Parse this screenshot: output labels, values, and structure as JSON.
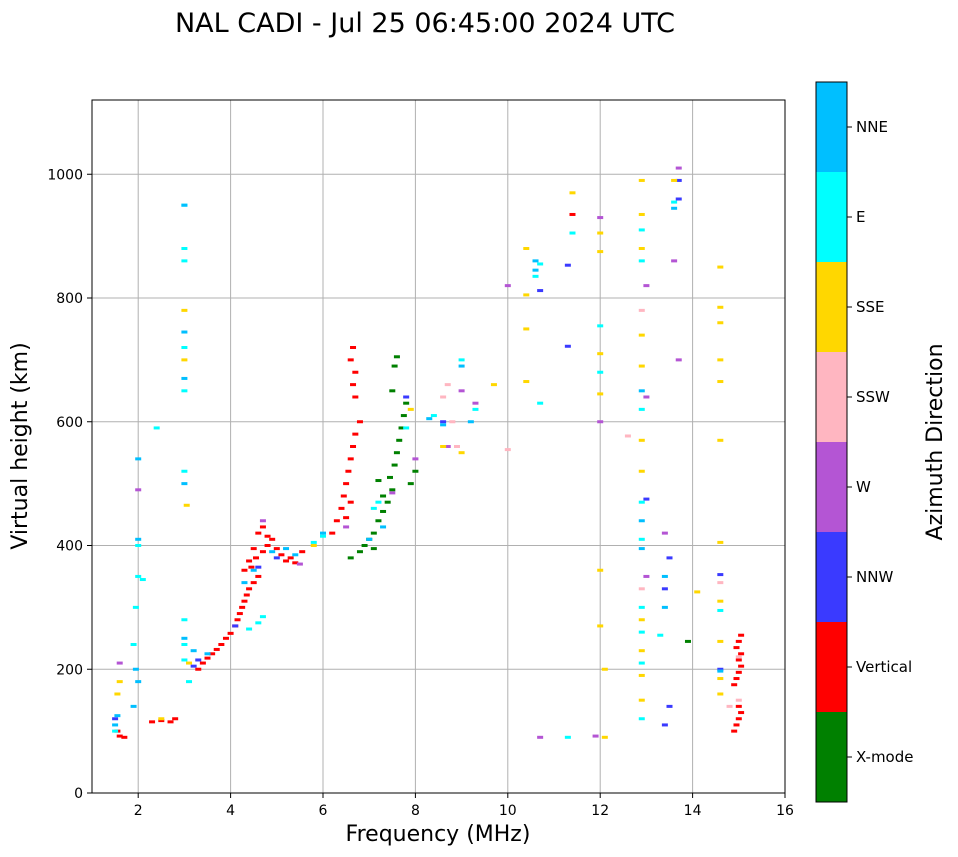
{
  "colors": {
    "X-mode": "#008000",
    "Vertical": "#ff0000",
    "NNW": "#3a3aff",
    "W": "#b455d4",
    "SSW": "#ffb6c1",
    "SSE": "#ffd700",
    "E": "#00ffff",
    "NNE": "#00bfff"
  },
  "chart_data": {
    "type": "scatter",
    "title": "NAL CADI - Jul 25 06:45:00 2024 UTC",
    "xlabel": "Frequency (MHz)",
    "ylabel": "Virtual height (km)",
    "xlim": [
      1,
      16
    ],
    "ylim": [
      0,
      1120
    ],
    "xticks": [
      2,
      4,
      6,
      8,
      10,
      12,
      14,
      16
    ],
    "yticks": [
      0,
      200,
      400,
      600,
      800,
      1000
    ],
    "grid": true,
    "colorbar": {
      "title": "Azimuth Direction",
      "categories": [
        "X-mode",
        "Vertical",
        "NNW",
        "W",
        "SSW",
        "SSE",
        "E",
        "NNE"
      ]
    },
    "series": [
      {
        "name": "Vertical",
        "points": [
          [
            1.55,
            100
          ],
          [
            1.6,
            92
          ],
          [
            1.7,
            90
          ],
          [
            2.3,
            115
          ],
          [
            2.5,
            117
          ],
          [
            2.7,
            115
          ],
          [
            2.8,
            120
          ],
          [
            3.3,
            200
          ],
          [
            3.4,
            210
          ],
          [
            3.5,
            218
          ],
          [
            3.6,
            225
          ],
          [
            3.7,
            232
          ],
          [
            3.8,
            240
          ],
          [
            3.9,
            250
          ],
          [
            4.0,
            258
          ],
          [
            4.1,
            270
          ],
          [
            4.15,
            280
          ],
          [
            4.2,
            290
          ],
          [
            4.25,
            300
          ],
          [
            4.3,
            310
          ],
          [
            4.35,
            320
          ],
          [
            4.4,
            330
          ],
          [
            4.5,
            340
          ],
          [
            4.6,
            350
          ],
          [
            4.45,
            365
          ],
          [
            4.55,
            380
          ],
          [
            4.7,
            390
          ],
          [
            4.8,
            400
          ],
          [
            4.9,
            410
          ],
          [
            5.0,
            395
          ],
          [
            5.1,
            385
          ],
          [
            5.2,
            375
          ],
          [
            4.6,
            420
          ],
          [
            4.7,
            430
          ],
          [
            4.8,
            415
          ],
          [
            4.3,
            360
          ],
          [
            4.4,
            375
          ],
          [
            4.5,
            395
          ],
          [
            5.3,
            380
          ],
          [
            5.4,
            372
          ],
          [
            5.55,
            390
          ],
          [
            6.2,
            420
          ],
          [
            6.3,
            440
          ],
          [
            6.4,
            460
          ],
          [
            6.45,
            480
          ],
          [
            6.5,
            500
          ],
          [
            6.55,
            520
          ],
          [
            6.6,
            540
          ],
          [
            6.65,
            560
          ],
          [
            6.7,
            580
          ],
          [
            6.8,
            600
          ],
          [
            6.7,
            640
          ],
          [
            6.65,
            660
          ],
          [
            6.7,
            680
          ],
          [
            6.6,
            700
          ],
          [
            6.65,
            720
          ],
          [
            6.6,
            470
          ],
          [
            6.5,
            445
          ],
          [
            14.9,
            100
          ],
          [
            14.95,
            110
          ],
          [
            15.0,
            120
          ],
          [
            15.05,
            130
          ],
          [
            15.0,
            140
          ],
          [
            14.9,
            175
          ],
          [
            14.95,
            185
          ],
          [
            15.0,
            195
          ],
          [
            15.05,
            205
          ],
          [
            15.0,
            215
          ],
          [
            15.05,
            225
          ],
          [
            14.95,
            235
          ],
          [
            15.0,
            245
          ],
          [
            15.05,
            255
          ],
          [
            11.4,
            935
          ]
        ]
      },
      {
        "name": "X-mode",
        "points": [
          [
            6.6,
            380
          ],
          [
            6.8,
            390
          ],
          [
            6.9,
            400
          ],
          [
            7.0,
            410
          ],
          [
            7.1,
            420
          ],
          [
            7.2,
            440
          ],
          [
            7.3,
            455
          ],
          [
            7.4,
            470
          ],
          [
            7.5,
            490
          ],
          [
            7.45,
            510
          ],
          [
            7.55,
            530
          ],
          [
            7.6,
            550
          ],
          [
            7.65,
            570
          ],
          [
            7.7,
            590
          ],
          [
            7.75,
            610
          ],
          [
            7.8,
            630
          ],
          [
            7.5,
            650
          ],
          [
            7.55,
            690
          ],
          [
            7.6,
            705
          ],
          [
            7.9,
            500
          ],
          [
            8.0,
            520
          ],
          [
            7.1,
            395
          ],
          [
            7.2,
            505
          ],
          [
            7.3,
            480
          ],
          [
            13.9,
            245
          ]
        ]
      },
      {
        "name": "NNW",
        "points": [
          [
            1.5,
            120
          ],
          [
            3.2,
            205
          ],
          [
            3.3,
            215
          ],
          [
            4.1,
            270
          ],
          [
            4.6,
            365
          ],
          [
            5.0,
            380
          ],
          [
            7.8,
            640
          ],
          [
            8.6,
            600
          ],
          [
            11.3,
            722
          ],
          [
            10.7,
            812
          ],
          [
            11.3,
            853
          ],
          [
            13.0,
            475
          ],
          [
            13.4,
            330
          ],
          [
            13.5,
            380
          ],
          [
            13.7,
            960
          ],
          [
            13.7,
            990
          ],
          [
            13.4,
            110
          ],
          [
            13.5,
            140
          ],
          [
            14.6,
            200
          ],
          [
            14.6,
            353
          ]
        ]
      },
      {
        "name": "W",
        "points": [
          [
            1.6,
            210
          ],
          [
            2.0,
            490
          ],
          [
            4.7,
            440
          ],
          [
            5.5,
            370
          ],
          [
            6.5,
            430
          ],
          [
            7.5,
            485
          ],
          [
            8.0,
            540
          ],
          [
            8.7,
            560
          ],
          [
            9.0,
            650
          ],
          [
            9.3,
            630
          ],
          [
            10.7,
            90
          ],
          [
            11.9,
            92
          ],
          [
            12.0,
            930
          ],
          [
            12.0,
            600
          ],
          [
            13.0,
            350
          ],
          [
            13.0,
            640
          ],
          [
            13.0,
            820
          ],
          [
            13.4,
            420
          ],
          [
            13.6,
            860
          ],
          [
            13.7,
            1010
          ],
          [
            13.7,
            700
          ],
          [
            10.0,
            820
          ]
        ]
      },
      {
        "name": "SSW",
        "points": [
          [
            8.6,
            640
          ],
          [
            8.7,
            660
          ],
          [
            8.8,
            600
          ],
          [
            8.9,
            560
          ],
          [
            12.6,
            577
          ],
          [
            12.9,
            330
          ],
          [
            12.9,
            780
          ],
          [
            14.8,
            140
          ],
          [
            14.6,
            340
          ],
          [
            15.0,
            150
          ],
          [
            15.0,
            220
          ],
          [
            10.0,
            555
          ]
        ]
      },
      {
        "name": "SSE",
        "points": [
          [
            1.55,
            160
          ],
          [
            1.6,
            180
          ],
          [
            2.5,
            120
          ],
          [
            3.0,
            700
          ],
          [
            3.0,
            780
          ],
          [
            3.05,
            465
          ],
          [
            3.1,
            210
          ],
          [
            5.8,
            400
          ],
          [
            7.9,
            620
          ],
          [
            8.6,
            560
          ],
          [
            9.0,
            550
          ],
          [
            9.7,
            660
          ],
          [
            10.4,
            880
          ],
          [
            10.4,
            750
          ],
          [
            10.4,
            805
          ],
          [
            10.4,
            665
          ],
          [
            11.4,
            970
          ],
          [
            12.0,
            905
          ],
          [
            12.0,
            875
          ],
          [
            12.0,
            710
          ],
          [
            12.0,
            645
          ],
          [
            12.0,
            360
          ],
          [
            12.0,
            270
          ],
          [
            12.1,
            200
          ],
          [
            12.1,
            90
          ],
          [
            12.9,
            990
          ],
          [
            12.9,
            935
          ],
          [
            12.9,
            880
          ],
          [
            12.9,
            740
          ],
          [
            12.9,
            690
          ],
          [
            12.9,
            570
          ],
          [
            12.9,
            520
          ],
          [
            12.9,
            280
          ],
          [
            12.9,
            230
          ],
          [
            12.9,
            190
          ],
          [
            12.9,
            150
          ],
          [
            13.6,
            990
          ],
          [
            14.1,
            325
          ],
          [
            14.6,
            850
          ],
          [
            14.6,
            785
          ],
          [
            14.6,
            760
          ],
          [
            14.6,
            700
          ],
          [
            14.6,
            665
          ],
          [
            14.6,
            570
          ],
          [
            14.6,
            405
          ],
          [
            14.6,
            310
          ],
          [
            14.6,
            245
          ],
          [
            14.6,
            185
          ],
          [
            14.6,
            160
          ]
        ]
      },
      {
        "name": "E",
        "points": [
          [
            1.5,
            100
          ],
          [
            1.9,
            240
          ],
          [
            1.95,
            300
          ],
          [
            2.0,
            350
          ],
          [
            2.0,
            400
          ],
          [
            2.1,
            345
          ],
          [
            2.4,
            590
          ],
          [
            3.0,
            950
          ],
          [
            3.0,
            880
          ],
          [
            3.0,
            860
          ],
          [
            3.0,
            720
          ],
          [
            3.0,
            650
          ],
          [
            3.0,
            520
          ],
          [
            3.0,
            280
          ],
          [
            3.0,
            240
          ],
          [
            3.0,
            215
          ],
          [
            3.1,
            180
          ],
          [
            4.4,
            265
          ],
          [
            4.6,
            275
          ],
          [
            4.7,
            285
          ],
          [
            5.8,
            405
          ],
          [
            6.0,
            415
          ],
          [
            7.1,
            460
          ],
          [
            7.2,
            470
          ],
          [
            7.8,
            590
          ],
          [
            8.4,
            610
          ],
          [
            9.0,
            700
          ],
          [
            9.3,
            620
          ],
          [
            10.7,
            855
          ],
          [
            10.6,
            835
          ],
          [
            10.7,
            630
          ],
          [
            11.3,
            90
          ],
          [
            11.4,
            905
          ],
          [
            12.0,
            755
          ],
          [
            12.0,
            680
          ],
          [
            12.9,
            910
          ],
          [
            12.9,
            860
          ],
          [
            12.9,
            620
          ],
          [
            12.9,
            470
          ],
          [
            12.9,
            410
          ],
          [
            12.9,
            300
          ],
          [
            12.9,
            260
          ],
          [
            12.9,
            210
          ],
          [
            12.9,
            120
          ],
          [
            13.3,
            255
          ],
          [
            13.6,
            955
          ],
          [
            14.6,
            295
          ]
        ]
      },
      {
        "name": "NNE",
        "points": [
          [
            1.5,
            110
          ],
          [
            1.55,
            125
          ],
          [
            1.9,
            140
          ],
          [
            1.95,
            200
          ],
          [
            2.0,
            180
          ],
          [
            2.0,
            410
          ],
          [
            2.0,
            540
          ],
          [
            3.0,
            950
          ],
          [
            3.0,
            745
          ],
          [
            3.0,
            670
          ],
          [
            3.0,
            500
          ],
          [
            3.0,
            250
          ],
          [
            3.2,
            230
          ],
          [
            3.5,
            225
          ],
          [
            4.3,
            340
          ],
          [
            4.5,
            360
          ],
          [
            4.9,
            390
          ],
          [
            5.2,
            395
          ],
          [
            5.4,
            385
          ],
          [
            6.0,
            420
          ],
          [
            7.0,
            410
          ],
          [
            7.3,
            430
          ],
          [
            8.3,
            605
          ],
          [
            8.6,
            595
          ],
          [
            9.0,
            690
          ],
          [
            9.2,
            600
          ],
          [
            10.6,
            860
          ],
          [
            10.6,
            845
          ],
          [
            12.9,
            650
          ],
          [
            12.9,
            440
          ],
          [
            12.9,
            395
          ],
          [
            13.4,
            350
          ],
          [
            13.4,
            300
          ],
          [
            13.6,
            945
          ],
          [
            14.6,
            197
          ]
        ]
      }
    ]
  }
}
